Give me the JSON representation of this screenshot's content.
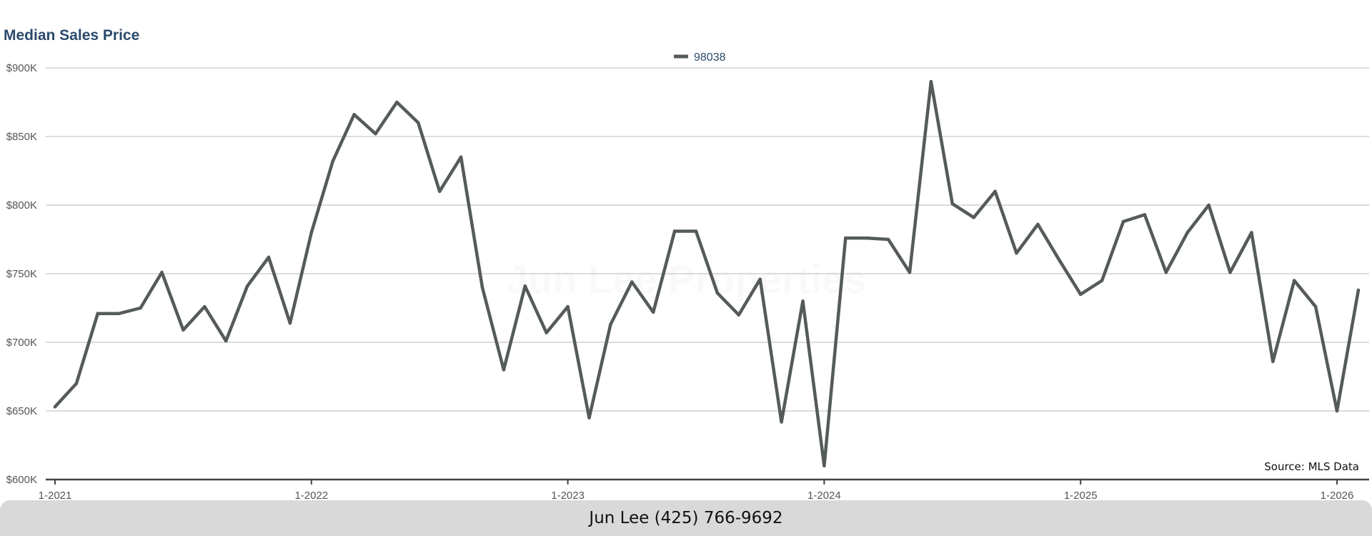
{
  "chart_data": {
    "type": "line",
    "title": "Median Sales Price",
    "legend": {
      "placement": "top-center",
      "entries": [
        "98038"
      ]
    },
    "series": [
      {
        "name": "98038",
        "color": "#555b59",
        "values": [
          653000,
          670000,
          721000,
          721000,
          725000,
          751000,
          709000,
          726000,
          701000,
          741000,
          762000,
          714000,
          780000,
          832000,
          866000,
          852000,
          875000,
          860000,
          810000,
          835000,
          740000,
          680000,
          741000,
          707000,
          726000,
          645000,
          713000,
          744000,
          722000,
          781000,
          781000,
          736000,
          720000,
          746000,
          642000,
          730000,
          610000,
          776000,
          776000,
          775000,
          751000,
          890000,
          801000,
          791000,
          810000,
          765000,
          786000,
          760000,
          735000,
          745000,
          788000,
          793000,
          751000,
          780000,
          800000,
          751000,
          780000,
          686000,
          745000,
          726000,
          650000,
          738000
        ]
      }
    ],
    "x_start": "1-2021",
    "x_interval": "month",
    "x_ticks": [
      "1-2021",
      "1-2022",
      "1-2023",
      "1-2024",
      "1-2025",
      "1-2026"
    ],
    "y_ticks": [
      "$600K",
      "$650K",
      "$700K",
      "$750K",
      "$800K",
      "$850K",
      "$900K"
    ],
    "ylim": [
      600000,
      900000
    ],
    "grid": true
  },
  "watermark": "Jun Lee Properties",
  "source_note": "Source: MLS Data",
  "footer": {
    "contact": "Jun Lee (425) 766-9692"
  }
}
